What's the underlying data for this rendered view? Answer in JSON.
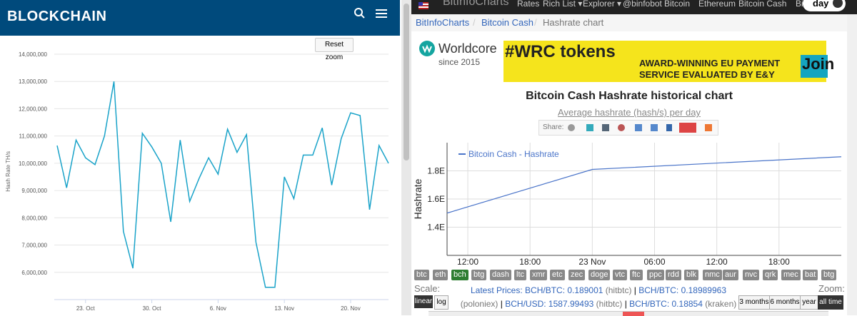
{
  "left_header": {
    "logo": "BLOCKCHAIN"
  },
  "reset_zoom": "Reset zoom",
  "right_nav": {
    "site": "BitInfoCharts",
    "links": [
      "Rates",
      "Rich List ▾",
      "Explorer ▾",
      "@binfobot",
      "Bitcoin",
      "Ethereum",
      "Bitcoin Cash",
      "Bitcoin"
    ],
    "toggle": "day"
  },
  "breadcrumbs": [
    "BitInfoCharts",
    "/",
    "Bitcoin Cash",
    "/",
    "Hashrate chart"
  ],
  "ad": {
    "brand": "Worldcore",
    "since": "since 2015",
    "headline": "#WRC tokens",
    "line1": "AWARD-WINNING EU PAYMENT",
    "line2": "SERVICE EVALUATED BY E&Y",
    "cta": "Join"
  },
  "share_label": "Share:",
  "coins": [
    "btc",
    "eth",
    "bch",
    "btg",
    "dash",
    "ltc",
    "xmr",
    "etc",
    "zec",
    "doge",
    "vtc",
    "ftc",
    "ppc",
    "rdd",
    "blk",
    "nmc",
    "aur",
    "nvc",
    "qrk",
    "mec",
    "bat",
    "btg"
  ],
  "controls": {
    "scale": "Scale:",
    "linear": "linear",
    "log": "log",
    "latest": "Latest Prices:",
    "p1": "BCH/BTC: 0.189001",
    "s1": "(hitbtc)",
    "sep1": "|",
    "p2": "BCH/BTC: 0.18989963",
    "s2": "(poloniex)",
    "sep2": "|",
    "p3": "BCH/USD: 1587.99493",
    "s3": "(hitbtc)",
    "sep3": "|",
    "p4": "BCH/BTC: 0.18854",
    "s4": "(kraken)",
    "zoom": "Zoom:",
    "z": [
      "3 months",
      "6 months",
      "year",
      "all time"
    ]
  },
  "chart_data": [
    {
      "type": "line",
      "y_label": "Hash Rate TH/s",
      "categories": [
        null,
        null,
        null,
        "23. Oct",
        null,
        null,
        null,
        null,
        null,
        null,
        "30. Oct",
        null,
        null,
        null,
        null,
        null,
        null,
        "6. Nov",
        null,
        null,
        null,
        null,
        null,
        null,
        "13. Nov",
        null,
        null,
        null,
        null,
        null,
        null,
        "20. Nov",
        null,
        null,
        null,
        null
      ],
      "series": [
        {
          "name": null,
          "color": "#1aa3c9",
          "values": [
            10650000,
            9100000,
            10850000,
            10200000,
            9950000,
            11000000,
            13000000,
            7500000,
            6150000,
            11100000,
            10600000,
            10000000,
            7850000,
            10850000,
            8600000,
            9450000,
            10200000,
            9600000,
            11250000,
            10400000,
            11050000,
            7100000,
            5450000,
            5450000,
            9500000,
            8700000,
            10300000,
            10300000,
            11300000,
            9200000,
            10900000,
            11850000,
            11750000,
            8300000,
            10650000,
            10000000
          ]
        }
      ],
      "ylim": [
        5000000,
        14400000
      ],
      "yticks": [
        {
          "value": 6000000,
          "label": "6,000,000"
        },
        {
          "value": 7000000,
          "label": "7,000,000"
        },
        {
          "value": 8000000,
          "label": "8,000,000"
        },
        {
          "value": 9000000,
          "label": "9,000,000"
        },
        {
          "value": 10000000,
          "label": "10,000,000"
        },
        {
          "value": 11000000,
          "label": "11,000,000"
        },
        {
          "value": 12000000,
          "label": "12,000,000"
        },
        {
          "value": 13000000,
          "label": "13,000,000"
        },
        {
          "value": 14000000,
          "label": "14,000,000"
        }
      ],
      "grid": true
    },
    {
      "type": "line",
      "title": "Bitcoin Cash Hashrate historical chart",
      "subtitle": "Average hashrate (hash/s) per day",
      "y_label": "Hashrate",
      "x": [
        10,
        24,
        48
      ],
      "series": [
        {
          "name": "Bitcoin Cash - Hashrate",
          "color": "#4a74c9",
          "values": [
            1.5,
            1.81,
            1.9
          ]
        }
      ],
      "xlim": [
        10,
        48
      ],
      "xticks": [
        {
          "value": 12,
          "label": "12:00"
        },
        {
          "value": 18,
          "label": "18:00"
        },
        {
          "value": 24,
          "label": "23 Nov"
        },
        {
          "value": 30,
          "label": "06:00"
        },
        {
          "value": 36,
          "label": "12:00"
        },
        {
          "value": 42,
          "label": "18:00"
        }
      ],
      "ylim": [
        1.2,
        2
      ],
      "yticks": [
        {
          "value": 1.4,
          "label": "1.4E"
        },
        {
          "value": 1.6,
          "label": "1.6E"
        },
        {
          "value": 1.8,
          "label": "1.8E"
        }
      ],
      "grid": true,
      "legend": "top-left"
    }
  ]
}
